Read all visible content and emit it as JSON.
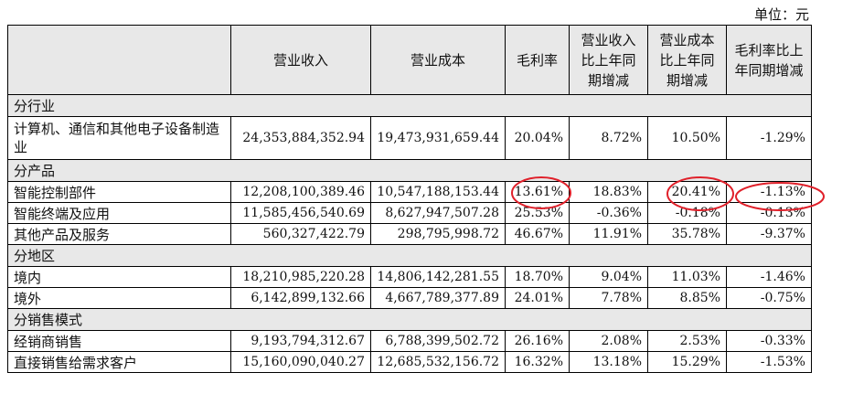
{
  "unit_label": "单位：元",
  "annotation_color": "#e0202a",
  "headers": [
    "",
    "营业收入",
    "营业成本",
    "毛利率",
    "营业收入比上年同期增减",
    "营业成本比上年同期增减",
    "毛利率比上年同期增减"
  ],
  "sections": [
    {
      "title": "分行业",
      "rows": [
        {
          "name": "计算机、通信和其他电子设备制造业",
          "revenue": "24,353,884,352.94",
          "cost": "19,473,931,659.44",
          "margin": "20.04%",
          "rev_change": "8.72%",
          "cost_change": "10.50%",
          "margin_change": "-1.29%"
        }
      ]
    },
    {
      "title": "分产品",
      "rows": [
        {
          "name": "智能控制部件",
          "revenue": "12,208,100,389.46",
          "cost": "10,547,188,153.44",
          "margin": "13.61%",
          "rev_change": "18.83%",
          "cost_change": "20.41%",
          "margin_change": "-1.13%"
        },
        {
          "name": "智能终端及应用",
          "revenue": "11,585,456,540.69",
          "cost": "8,627,947,507.28",
          "margin": "25.53%",
          "rev_change": "-0.36%",
          "cost_change": "-0.18%",
          "margin_change": "-0.13%"
        },
        {
          "name": "其他产品及服务",
          "revenue": "560,327,422.79",
          "cost": "298,795,998.72",
          "margin": "46.67%",
          "rev_change": "11.91%",
          "cost_change": "35.78%",
          "margin_change": "-9.37%"
        }
      ]
    },
    {
      "title": "分地区",
      "rows": [
        {
          "name": "境内",
          "revenue": "18,210,985,220.28",
          "cost": "14,806,142,281.55",
          "margin": "18.70%",
          "rev_change": "9.04%",
          "cost_change": "11.03%",
          "margin_change": "-1.46%"
        },
        {
          "name": "境外",
          "revenue": "6,142,899,132.66",
          "cost": "4,667,789,377.89",
          "margin": "24.01%",
          "rev_change": "7.78%",
          "cost_change": "8.85%",
          "margin_change": "-0.75%"
        }
      ]
    },
    {
      "title": "分销售模式",
      "rows": [
        {
          "name": "经销商销售",
          "revenue": "9,193,794,312.67",
          "cost": "6,788,399,502.72",
          "margin": "26.16%",
          "rev_change": "2.08%",
          "cost_change": "2.53%",
          "margin_change": "-0.33%"
        },
        {
          "name": "直接销售给需求客户",
          "revenue": "15,160,090,040.27",
          "cost": "12,685,532,156.72",
          "margin": "16.32%",
          "rev_change": "13.18%",
          "cost_change": "15.29%",
          "margin_change": "-1.53%"
        }
      ]
    }
  ]
}
